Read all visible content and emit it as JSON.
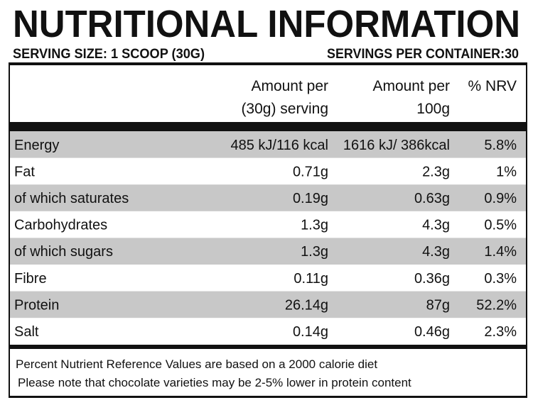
{
  "header": {
    "title": "NUTRITIONAL INFORMATION",
    "serving_size": "SERVING SIZE: 1 SCOOP (30G)",
    "servings_per_container": "SERVINGS PER CONTAINER:30"
  },
  "table": {
    "columns": [
      [
        "Amount per",
        "(30g) serving"
      ],
      [
        "Amount per",
        "100g"
      ],
      [
        "% NRV"
      ]
    ],
    "rows": [
      [
        "Energy",
        "485 kJ/116 kcal",
        "1616 kJ/ 386kcal",
        "5.8%"
      ],
      [
        "Fat",
        "0.71g",
        "2.3g",
        "1%"
      ],
      [
        "of which saturates",
        "0.19g",
        "0.63g",
        "0.9%"
      ],
      [
        "Carbohydrates",
        "1.3g",
        "4.3g",
        "0.5%"
      ],
      [
        "of which sugars",
        "1.3g",
        "4.3g",
        "1.4%"
      ],
      [
        "Fibre",
        "0.11g",
        "0.36g",
        "0.3%"
      ],
      [
        "Protein",
        "26.14g",
        "87g",
        "52.2%"
      ],
      [
        "Salt",
        "0.14g",
        "0.46g",
        "2.3%"
      ]
    ]
  },
  "footer": [
    "Percent Nutrient Reference Values are based on a 2000 calorie diet",
    "Please note that chocolate varieties may be 2-5% lower in protein content"
  ]
}
